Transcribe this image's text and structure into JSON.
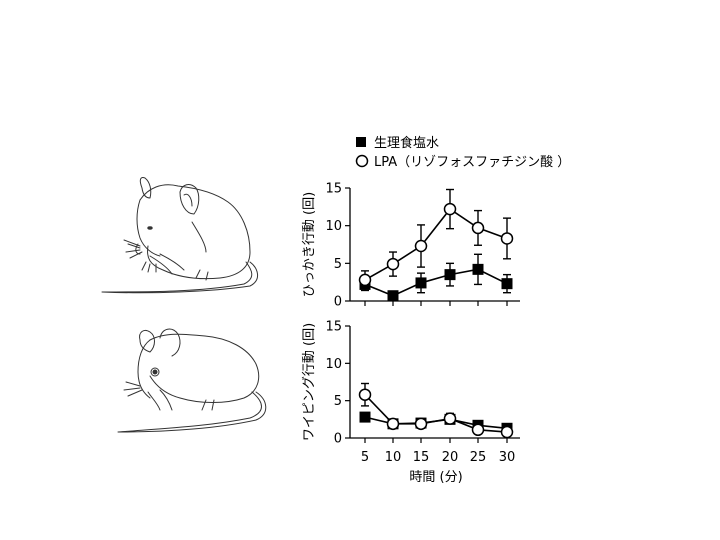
{
  "legend": [
    {
      "label": "生理食塩水",
      "marker": "filled-square"
    },
    {
      "label": "LPA（リゾフォスファチジン酸 ）",
      "marker": "open-circle"
    }
  ],
  "illustrations": [
    {
      "subject": "mouse-scratching"
    },
    {
      "subject": "mouse-wiping"
    }
  ],
  "chart_data": [
    {
      "type": "line",
      "ylabel": "ひっかき行動 (回)",
      "xlabel": "",
      "ylim": [
        0,
        15
      ],
      "yticks": [
        0,
        5,
        10,
        15
      ],
      "x": [
        5,
        10,
        15,
        20,
        25,
        30
      ],
      "xticks_visible": false,
      "series": [
        {
          "name": "生理食塩水",
          "marker": "filled-square",
          "values": [
            2.2,
            0.7,
            2.4,
            3.5,
            4.2,
            2.3
          ],
          "errors": [
            0.8,
            0.3,
            1.3,
            1.5,
            2.0,
            1.2
          ]
        },
        {
          "name": "LPA（リゾフォスファチジン酸 ）",
          "marker": "open-circle",
          "values": [
            2.8,
            4.9,
            7.3,
            12.2,
            9.7,
            8.3
          ],
          "errors": [
            1.2,
            1.6,
            2.8,
            2.6,
            2.3,
            2.7
          ]
        }
      ]
    },
    {
      "type": "line",
      "ylabel": "ワイピング行動 (回)",
      "xlabel": "時間 (分)",
      "ylim": [
        0,
        15
      ],
      "yticks": [
        0,
        5,
        10,
        15
      ],
      "x": [
        5,
        10,
        15,
        20,
        25,
        30
      ],
      "xticks_visible": true,
      "series": [
        {
          "name": "生理食塩水",
          "marker": "filled-square",
          "values": [
            2.8,
            1.9,
            2.0,
            2.5,
            1.7,
            1.3
          ],
          "errors": [
            0.4,
            0.3,
            0.5,
            0.6,
            0.3,
            0.3
          ]
        },
        {
          "name": "LPA（リゾフォスファチジン酸 ）",
          "marker": "open-circle",
          "values": [
            5.8,
            1.9,
            1.9,
            2.6,
            1.1,
            0.8
          ],
          "errors": [
            1.5,
            0.3,
            0.6,
            0.7,
            0.3,
            0.3
          ]
        }
      ]
    }
  ]
}
